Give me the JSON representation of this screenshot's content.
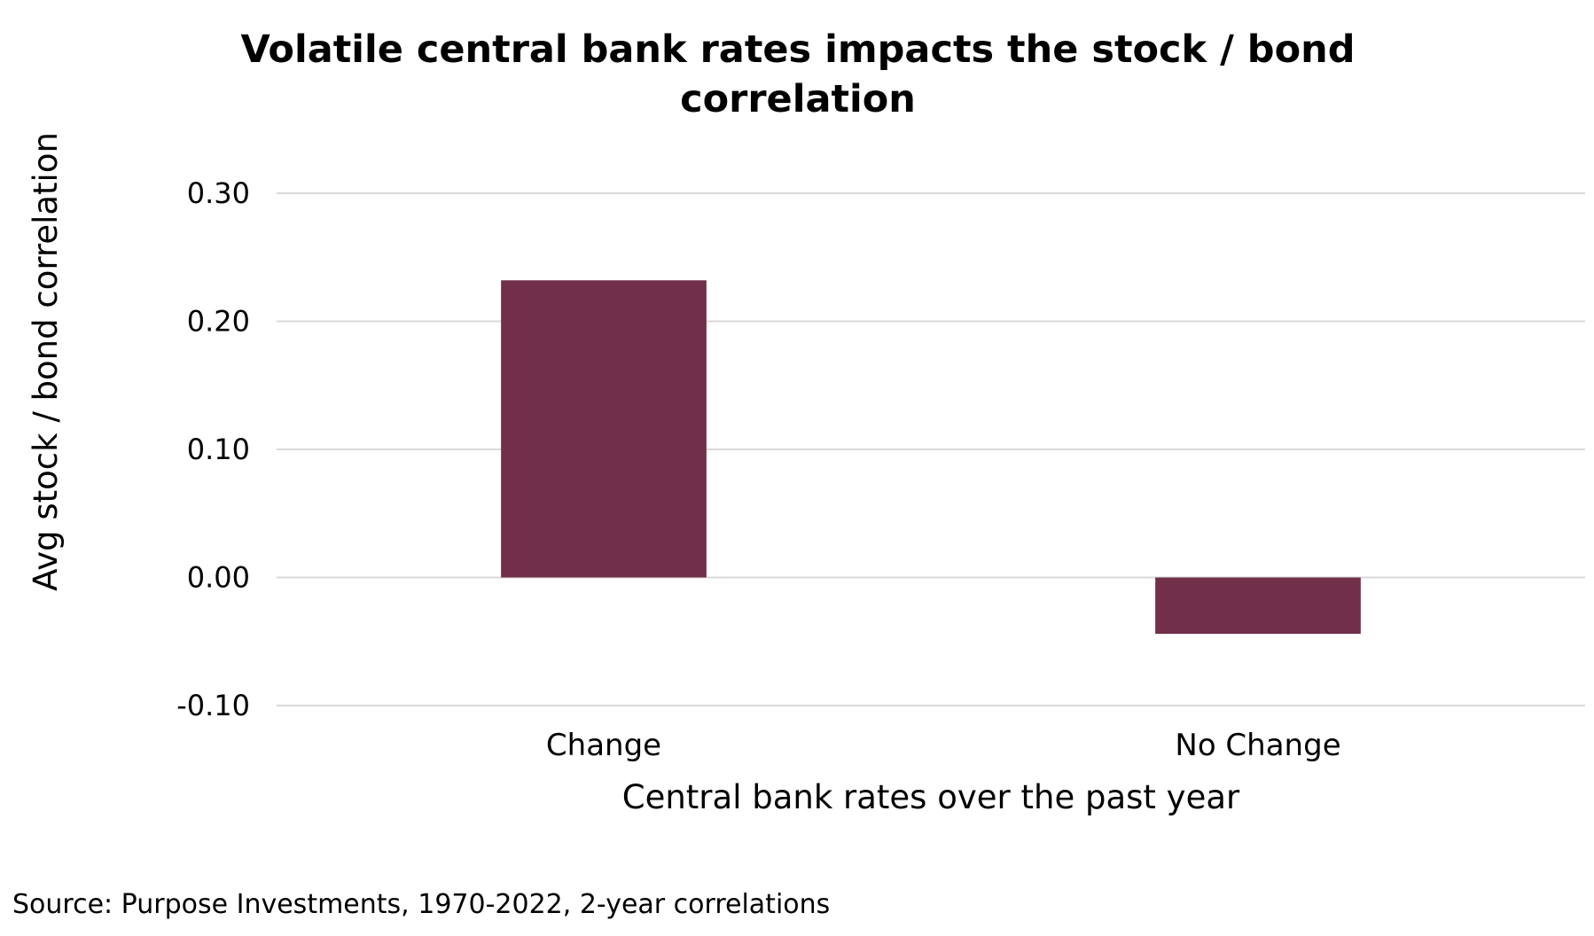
{
  "chart_data": {
    "type": "bar",
    "title_lines": [
      "Volatile central bank rates impacts the stock / bond",
      "correlation"
    ],
    "xlabel": "Central bank rates over the past year",
    "ylabel": "Avg stock / bond correlation",
    "categories": [
      "Change",
      "No Change"
    ],
    "values": [
      0.232,
      -0.044
    ],
    "ylim": [
      -0.1,
      0.3
    ],
    "yticks": [
      0.3,
      0.2,
      0.1,
      0.0,
      -0.1
    ],
    "ytick_labels": [
      "0.30",
      "0.20",
      "0.10",
      "0.00",
      "-0.10"
    ],
    "grid": true,
    "bar_color": "#722F4A",
    "grid_color": "#D9D9D9",
    "source": "Source: Purpose Investments, 1970-2022, 2-year correlations"
  }
}
